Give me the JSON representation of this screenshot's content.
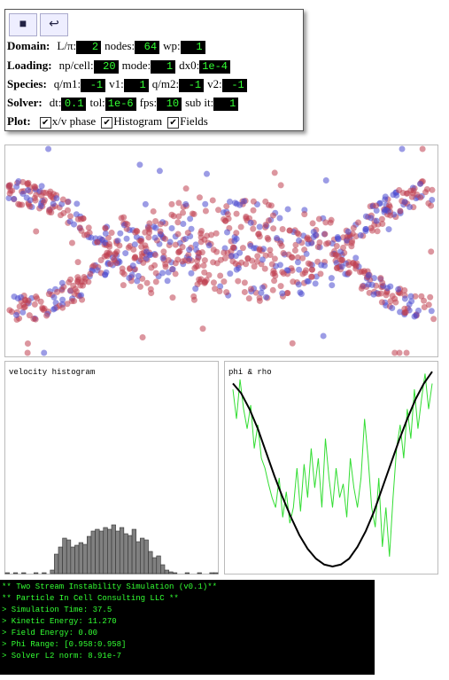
{
  "controls": {
    "rows": [
      {
        "label": "Domain:",
        "fields": [
          {
            "label": "L/π:",
            "value": "2"
          },
          {
            "label": "nodes:",
            "value": "64"
          },
          {
            "label": "wp:",
            "value": "1"
          }
        ]
      },
      {
        "label": "Loading:",
        "fields": [
          {
            "label": "np/cell:",
            "value": "20"
          },
          {
            "label": "mode:",
            "value": "1"
          },
          {
            "label": "dx0:",
            "value": "1e-4"
          }
        ]
      },
      {
        "label": "Species:",
        "fields": [
          {
            "label": "q/m1:",
            "value": "-1"
          },
          {
            "label": "v1:",
            "value": "1"
          },
          {
            "label": "q/m2:",
            "value": "-1"
          },
          {
            "label": "v2:",
            "value": "-1"
          }
        ]
      },
      {
        "label": "Solver:",
        "fields": [
          {
            "label": "dt:",
            "value": "0.1"
          },
          {
            "label": "tol:",
            "value": "1e-6"
          },
          {
            "label": "fps:",
            "value": "10"
          },
          {
            "label": "sub it:",
            "value": "1"
          }
        ]
      }
    ],
    "plot_label": "Plot:",
    "plot_options": [
      {
        "label": "x/v phase",
        "checked": true
      },
      {
        "label": "Histogram",
        "checked": true
      },
      {
        "label": "Fields",
        "checked": true
      }
    ]
  },
  "histogram": {
    "title": "velocity histogram",
    "color": "#808080",
    "ylim": [
      0,
      220
    ],
    "counts": [
      1,
      0,
      1,
      0,
      1,
      0,
      0,
      1,
      0,
      1,
      0,
      4,
      22,
      30,
      40,
      38,
      30,
      32,
      35,
      33,
      42,
      48,
      50,
      48,
      52,
      50,
      55,
      48,
      52,
      45,
      43,
      50,
      36,
      40,
      38,
      25,
      18,
      20,
      10,
      4,
      2,
      1,
      0,
      0,
      1,
      0,
      0,
      1,
      0,
      0,
      1,
      1
    ]
  },
  "fields": {
    "title": "phi & rho",
    "ylim": [
      0,
      1
    ],
    "phi": {
      "color": "#000000",
      "values": [
        0.93,
        0.88,
        0.8,
        0.7,
        0.58,
        0.46,
        0.35,
        0.25,
        0.16,
        0.09,
        0.04,
        0.01,
        0,
        0.01,
        0.04,
        0.1,
        0.18,
        0.28,
        0.4,
        0.52,
        0.64,
        0.75,
        0.85,
        0.93,
        0.99
      ]
    },
    "rho": {
      "color": "#33dd33",
      "values": [
        0.9,
        0.75,
        0.95,
        0.8,
        0.7,
        0.82,
        0.6,
        0.72,
        0.55,
        0.5,
        0.42,
        0.35,
        0.3,
        0.45,
        0.25,
        0.38,
        0.22,
        0.3,
        0.5,
        0.28,
        0.52,
        0.35,
        0.6,
        0.4,
        0.55,
        0.3,
        0.65,
        0.45,
        0.3,
        0.5,
        0.35,
        0.42,
        0.25,
        0.55,
        0.4,
        0.3,
        0.45,
        0.75,
        0.55,
        0.3,
        0.2,
        0.45,
        0.1,
        0.3,
        0.05,
        0.35,
        0.6,
        0.72,
        0.55,
        0.8,
        0.65,
        0.9,
        0.7,
        0.85,
        0.98,
        0.8,
        0.93
      ]
    }
  },
  "console": {
    "lines": [
      "** Two Stream Instability Simulation (v0.1)**",
      "** Particle In Cell Consulting LLC **",
      "> Simulation Time: 37.5",
      "> Kinetic Energy: 11.270",
      "> Field Energy: 0.00",
      "> Phi Range: [0.958:0.958]",
      "> Solver L2 norm: 8.91e-7"
    ]
  }
}
